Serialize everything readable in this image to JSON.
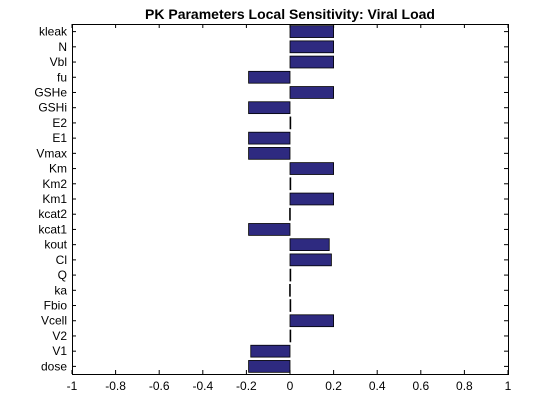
{
  "chart_data": {
    "type": "bar",
    "orientation": "horizontal",
    "title": "PK Parameters Local Sensitivity: Viral Load",
    "xlabel": "",
    "ylabel": "",
    "xlim": [
      -1,
      1
    ],
    "xticks": [
      "-1",
      "-0.8",
      "-0.6",
      "-0.4",
      "-0.2",
      "0",
      "0.2",
      "0.4",
      "0.6",
      "0.8",
      "1"
    ],
    "grid": false,
    "bar_color": "#2e2a80",
    "bar_edge_color": "#000000",
    "categories": [
      "kleak",
      "N",
      "Vbl",
      "fu",
      "GSHe",
      "GSHi",
      "E2",
      "E1",
      "Vmax",
      "Km",
      "Km2",
      "Km1",
      "kcat2",
      "kcat1",
      "kout",
      "Cl",
      "Q",
      "ka",
      "Fbio",
      "Vcell",
      "V2",
      "V1",
      "dose"
    ],
    "values": [
      0.2,
      0.2,
      0.2,
      -0.19,
      0.2,
      -0.19,
      0.0,
      -0.19,
      -0.19,
      0.2,
      0.002,
      0.2,
      -0.002,
      -0.19,
      0.18,
      0.19,
      0.0,
      -0.002,
      0.0,
      0.2,
      0.002,
      -0.18,
      -0.19
    ]
  }
}
